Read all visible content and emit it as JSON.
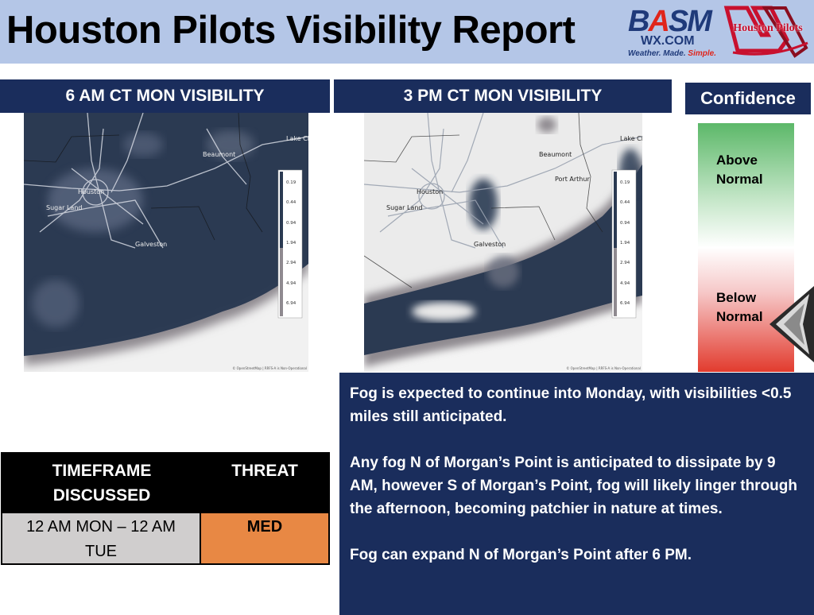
{
  "header": {
    "title": "Houston Pilots Visibility Report",
    "logo_basm": {
      "b": "B",
      "a": "A",
      "sm": "SM",
      "wx": "WX.COM",
      "tag_a": "Weather. Made. ",
      "tag_b": "Simple."
    },
    "logo_hp": {
      "text": "Houston Pilots"
    }
  },
  "panels": {
    "left": {
      "title": "6 AM CT MON VISIBILITY",
      "labels": [
        "Lake Ch",
        "Beaumont",
        "Houston",
        "Sugar Land",
        "Galveston"
      ],
      "legend": [
        "0.19",
        "0.44",
        "0.94",
        "1.94",
        "2.94",
        "4.94",
        "6.94"
      ],
      "credit": "© OpenStreetMap | RRFS-A is Non-Operational"
    },
    "right": {
      "title": "3 PM CT MON VISIBILITY",
      "labels": [
        "Lake Ch",
        "Beaumont",
        "Port Arthur",
        "Houston",
        "Sugar Land",
        "Galveston"
      ],
      "legend": [
        "0.19",
        "0.44",
        "0.94",
        "1.94",
        "2.94",
        "4.94",
        "6.94"
      ],
      "credit": "© OpenStreetMap | RRFS-A is Non-Operational"
    }
  },
  "confidence": {
    "title": "Confidence",
    "above": [
      "Above",
      "Normal"
    ],
    "below": [
      "Below",
      "Normal"
    ],
    "level": "below-normal"
  },
  "discussion": [
    "Fog is expected to continue into Monday, with visibilities <0.5 miles still anticipated.",
    "Any fog N of Morgan’s Point is anticipated to dissipate by 9 AM, however S of Morgan’s Point, fog will likely linger through the afternoon, becoming patchier in nature at times.",
    "Fog can expand N of Morgan’s Point after 6 PM."
  ],
  "threat_table": {
    "col1_header": [
      "TIMEFRAME",
      "DISCUSSED"
    ],
    "col2_header": "THREAT",
    "timeframe": [
      "12 AM MON – 12 AM",
      "TUE"
    ],
    "threat": "MED"
  },
  "colors": {
    "navy": "#1a2d5c",
    "header_bg": "#b4c6e7",
    "threat_med": "#e88844",
    "fog_dark": "#2b3a52"
  }
}
